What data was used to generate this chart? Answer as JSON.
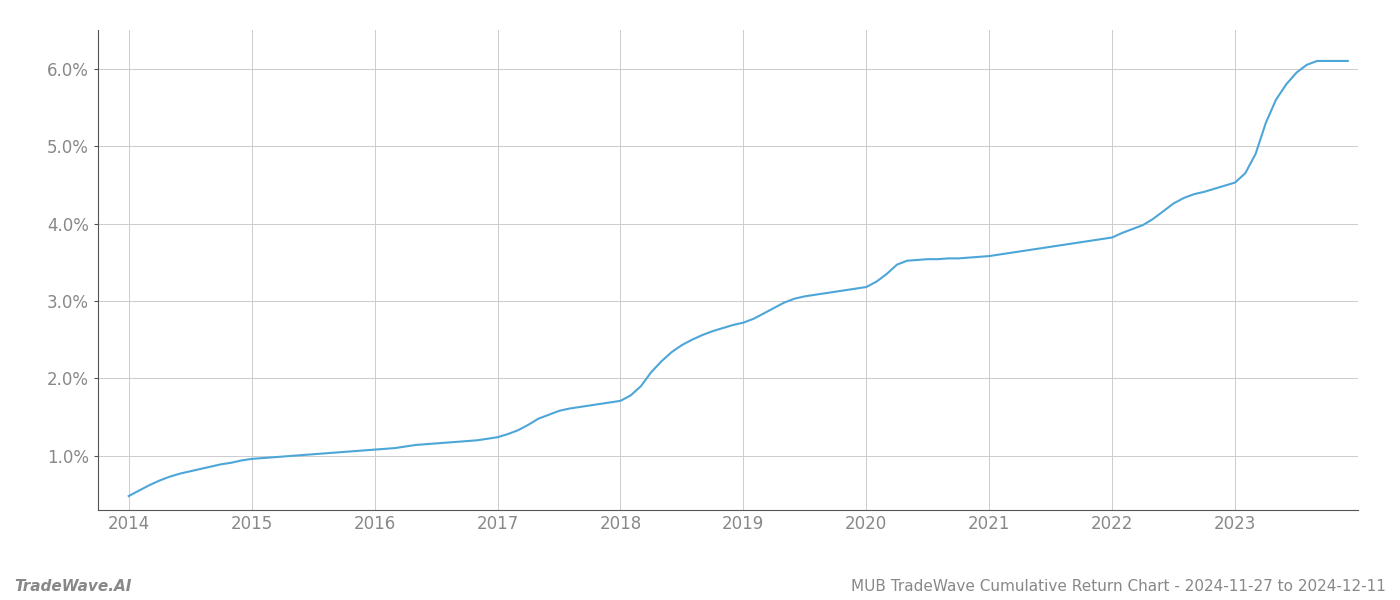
{
  "title": "MUB TradeWave Cumulative Return Chart - 2024-11-27 to 2024-12-11",
  "watermark": "TradeWave.AI",
  "line_color": "#4da6d8",
  "background_color": "#ffffff",
  "grid_color": "#cccccc",
  "x_start_year": 2014,
  "x_end_year": 2023,
  "ylim": [
    0.003,
    0.065
  ],
  "yticks": [
    0.01,
    0.02,
    0.03,
    0.04,
    0.05,
    0.06
  ],
  "x_values": [
    2014.0,
    2014.083,
    2014.167,
    2014.25,
    2014.333,
    2014.417,
    2014.5,
    2014.583,
    2014.667,
    2014.75,
    2014.833,
    2014.917,
    2015.0,
    2015.083,
    2015.167,
    2015.25,
    2015.333,
    2015.417,
    2015.5,
    2015.583,
    2015.667,
    2015.75,
    2015.833,
    2015.917,
    2016.0,
    2016.083,
    2016.167,
    2016.25,
    2016.333,
    2016.417,
    2016.5,
    2016.583,
    2016.667,
    2016.75,
    2016.833,
    2016.917,
    2017.0,
    2017.083,
    2017.167,
    2017.25,
    2017.333,
    2017.417,
    2017.5,
    2017.583,
    2017.667,
    2017.75,
    2017.833,
    2017.917,
    2018.0,
    2018.083,
    2018.167,
    2018.25,
    2018.333,
    2018.417,
    2018.5,
    2018.583,
    2018.667,
    2018.75,
    2018.833,
    2018.917,
    2019.0,
    2019.083,
    2019.167,
    2019.25,
    2019.333,
    2019.417,
    2019.5,
    2019.583,
    2019.667,
    2019.75,
    2019.833,
    2019.917,
    2020.0,
    2020.083,
    2020.167,
    2020.25,
    2020.333,
    2020.417,
    2020.5,
    2020.583,
    2020.667,
    2020.75,
    2020.833,
    2020.917,
    2021.0,
    2021.083,
    2021.167,
    2021.25,
    2021.333,
    2021.417,
    2021.5,
    2021.583,
    2021.667,
    2021.75,
    2021.833,
    2021.917,
    2022.0,
    2022.083,
    2022.167,
    2022.25,
    2022.333,
    2022.417,
    2022.5,
    2022.583,
    2022.667,
    2022.75,
    2022.833,
    2022.917,
    2023.0,
    2023.083,
    2023.167,
    2023.25,
    2023.333,
    2023.417,
    2023.5,
    2023.583,
    2023.667,
    2023.75,
    2023.833,
    2023.917
  ],
  "y_values": [
    0.0048,
    0.0055,
    0.0062,
    0.0068,
    0.0073,
    0.0077,
    0.008,
    0.0083,
    0.0086,
    0.0089,
    0.0091,
    0.0094,
    0.0096,
    0.0097,
    0.0098,
    0.0099,
    0.01,
    0.0101,
    0.0102,
    0.0103,
    0.0104,
    0.0105,
    0.0106,
    0.0107,
    0.0108,
    0.0109,
    0.011,
    0.0112,
    0.0114,
    0.0115,
    0.0116,
    0.0117,
    0.0118,
    0.0119,
    0.012,
    0.0122,
    0.0124,
    0.0128,
    0.0133,
    0.014,
    0.0148,
    0.0153,
    0.0158,
    0.0161,
    0.0163,
    0.0165,
    0.0167,
    0.0169,
    0.0171,
    0.0178,
    0.019,
    0.0208,
    0.0222,
    0.0234,
    0.0243,
    0.025,
    0.0256,
    0.0261,
    0.0265,
    0.0269,
    0.0272,
    0.0277,
    0.0284,
    0.0291,
    0.0298,
    0.0303,
    0.0306,
    0.0308,
    0.031,
    0.0312,
    0.0314,
    0.0316,
    0.0318,
    0.0325,
    0.0335,
    0.0347,
    0.0352,
    0.0353,
    0.0354,
    0.0354,
    0.0355,
    0.0355,
    0.0356,
    0.0357,
    0.0358,
    0.036,
    0.0362,
    0.0364,
    0.0366,
    0.0368,
    0.037,
    0.0372,
    0.0374,
    0.0376,
    0.0378,
    0.038,
    0.0382,
    0.0388,
    0.0393,
    0.0398,
    0.0406,
    0.0416,
    0.0426,
    0.0433,
    0.0438,
    0.0441,
    0.0445,
    0.0449,
    0.0453,
    0.0465,
    0.049,
    0.053,
    0.056,
    0.058,
    0.0595,
    0.0605,
    0.061,
    0.061,
    0.061,
    0.061
  ],
  "title_fontsize": 11,
  "watermark_fontsize": 11,
  "tick_label_color": "#888888",
  "axis_color": "#555555",
  "line_width": 1.5
}
